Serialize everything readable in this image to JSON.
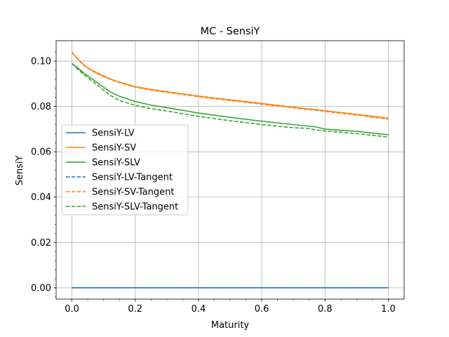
{
  "chart_data": {
    "type": "line",
    "title": "MC - SensiY",
    "xlabel": "Maturity",
    "ylabel": "SensiY",
    "xlim": [
      -0.05,
      1.05
    ],
    "ylim": [
      -0.005,
      0.109
    ],
    "xticks": [
      0.0,
      0.2,
      0.4,
      0.6,
      0.8,
      1.0
    ],
    "xtick_labels": [
      "0.0",
      "0.2",
      "0.4",
      "0.6",
      "0.8",
      "1.0"
    ],
    "yticks": [
      0.0,
      0.02,
      0.04,
      0.06,
      0.08,
      0.1
    ],
    "ytick_labels": [
      "0.00",
      "0.02",
      "0.04",
      "0.06",
      "0.08",
      "0.10"
    ],
    "grid": true,
    "legend_position": "center-left",
    "series": [
      {
        "name": "SensiY-LV",
        "color": "#1f77b4",
        "dash": "solid",
        "x": [
          0,
          1
        ],
        "y": [
          0,
          0
        ]
      },
      {
        "name": "SensiY-SV",
        "color": "#ff7f0e",
        "dash": "solid",
        "x": [
          0,
          0.02,
          0.04,
          0.06,
          0.08,
          0.1,
          0.12,
          0.15,
          0.2,
          0.25,
          0.3,
          0.4,
          0.5,
          0.6,
          0.7,
          0.8,
          0.9,
          1.0
        ],
        "y": [
          0.1038,
          0.1008,
          0.098,
          0.0962,
          0.0948,
          0.0935,
          0.0922,
          0.0907,
          0.0888,
          0.0875,
          0.0865,
          0.0846,
          0.0829,
          0.0813,
          0.0797,
          0.0781,
          0.0765,
          0.0748
        ]
      },
      {
        "name": "SensiY-SLV",
        "color": "#2ca02c",
        "dash": "solid",
        "x": [
          0,
          0.02,
          0.04,
          0.06,
          0.08,
          0.1,
          0.12,
          0.15,
          0.2,
          0.25,
          0.3,
          0.4,
          0.5,
          0.6,
          0.7,
          0.77,
          0.8,
          0.9,
          1.0
        ],
        "y": [
          0.099,
          0.0968,
          0.0945,
          0.0925,
          0.0905,
          0.0885,
          0.0865,
          0.0845,
          0.0822,
          0.0806,
          0.0795,
          0.0771,
          0.0752,
          0.0735,
          0.072,
          0.071,
          0.07,
          0.069,
          0.0675
        ]
      },
      {
        "name": "SensiY-LV-Tangent",
        "color": "#1f77b4",
        "dash": "dashed",
        "x": [
          0,
          1
        ],
        "y": [
          0,
          0
        ]
      },
      {
        "name": "SensiY-SV-Tangent",
        "color": "#ff7f0e",
        "dash": "dashed",
        "x": [
          0,
          0.02,
          0.04,
          0.06,
          0.08,
          0.1,
          0.12,
          0.15,
          0.2,
          0.25,
          0.3,
          0.4,
          0.5,
          0.6,
          0.7,
          0.8,
          0.9,
          1.0
        ],
        "y": [
          0.104,
          0.1005,
          0.0978,
          0.096,
          0.0945,
          0.0932,
          0.092,
          0.0905,
          0.0885,
          0.0872,
          0.0862,
          0.0843,
          0.0826,
          0.081,
          0.0794,
          0.0778,
          0.0762,
          0.0744
        ]
      },
      {
        "name": "SensiY-SLV-Tangent",
        "color": "#2ca02c",
        "dash": "dashed",
        "x": [
          0,
          0.02,
          0.04,
          0.06,
          0.08,
          0.1,
          0.12,
          0.15,
          0.2,
          0.25,
          0.3,
          0.4,
          0.5,
          0.6,
          0.7,
          0.75,
          0.77,
          0.8,
          0.9,
          1.0
        ],
        "y": [
          0.099,
          0.0962,
          0.0938,
          0.0915,
          0.0895,
          0.0872,
          0.085,
          0.0826,
          0.0805,
          0.079,
          0.078,
          0.0756,
          0.0737,
          0.072,
          0.0706,
          0.0703,
          0.0696,
          0.0692,
          0.068,
          0.0665
        ]
      }
    ]
  }
}
